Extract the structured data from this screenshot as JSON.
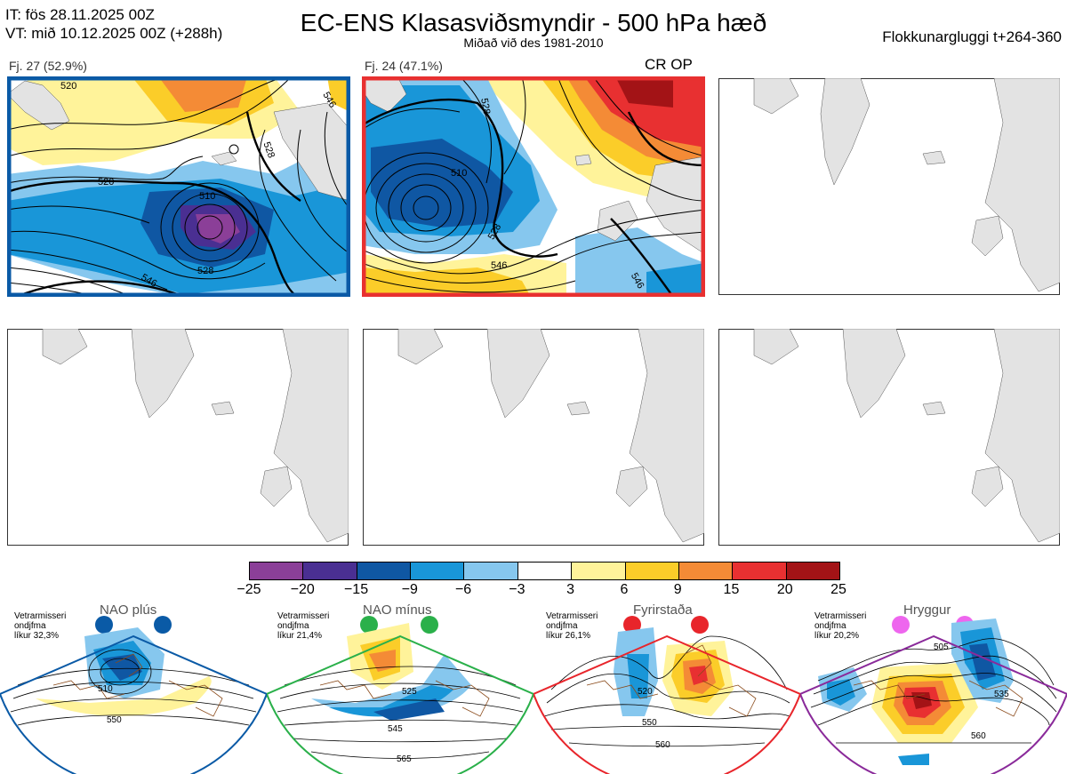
{
  "header": {
    "it_line": "IT: fös 28.11.2025 00Z",
    "vt_line": "VT: mið 10.12.2025 00Z  (+288h)",
    "title": "EC-ENS Klasasviðsmyndir - 500 hPa hæð",
    "subtitle": "Miðað við des 1981-2010",
    "window": "Flokkunargluggi t+264-360"
  },
  "clusters": [
    {
      "label": "Fj. 27 (52.9%)",
      "border_color": "#0a5aa6",
      "contours": [
        "520",
        "528",
        "510",
        "520",
        "546",
        "528",
        "546"
      ]
    },
    {
      "label": "Fj. 24 (47.1%)",
      "border_color": "#e83030",
      "tag": "CR OP",
      "contours": [
        "528",
        "510",
        "528",
        "546",
        "546"
      ]
    }
  ],
  "colorbar": {
    "colors": [
      "#8b3f98",
      "#4a2f92",
      "#0f57a3",
      "#1996d8",
      "#86c7ee",
      "#ffffff",
      "#fff39a",
      "#fbcd29",
      "#f48b36",
      "#e83031",
      "#a31316"
    ],
    "ticks": [
      "−25",
      "−20",
      "−15",
      "−9",
      "−6",
      "−3",
      "3",
      "6",
      "9",
      "15",
      "20",
      "25"
    ]
  },
  "regimes": [
    {
      "name": "NAO plús",
      "note": [
        "Vetrarmisseri",
        "ondjfma",
        "líkur 32,3%"
      ],
      "color": "#0a5aa6",
      "labels": [
        "510",
        "550"
      ]
    },
    {
      "name": "NAO mínus",
      "note": [
        "Vetrarmisseri",
        "ondjfma",
        "líkur 21,4%"
      ],
      "color": "#2ab04a",
      "labels": [
        "525",
        "545",
        "565"
      ]
    },
    {
      "name": "Fyrirstaða",
      "note": [
        "Vetrarmisseri",
        "ondjfma",
        "líkur 26,1%"
      ],
      "color": "#e8252b",
      "labels": [
        "520",
        "550",
        "560"
      ]
    },
    {
      "name": "Hryggur",
      "note": [
        "Vetrarmisseri",
        "ondjfma",
        "líkur 20,2%"
      ],
      "color": "#ee66ee",
      "labels": [
        "505",
        "535",
        "560"
      ]
    }
  ]
}
